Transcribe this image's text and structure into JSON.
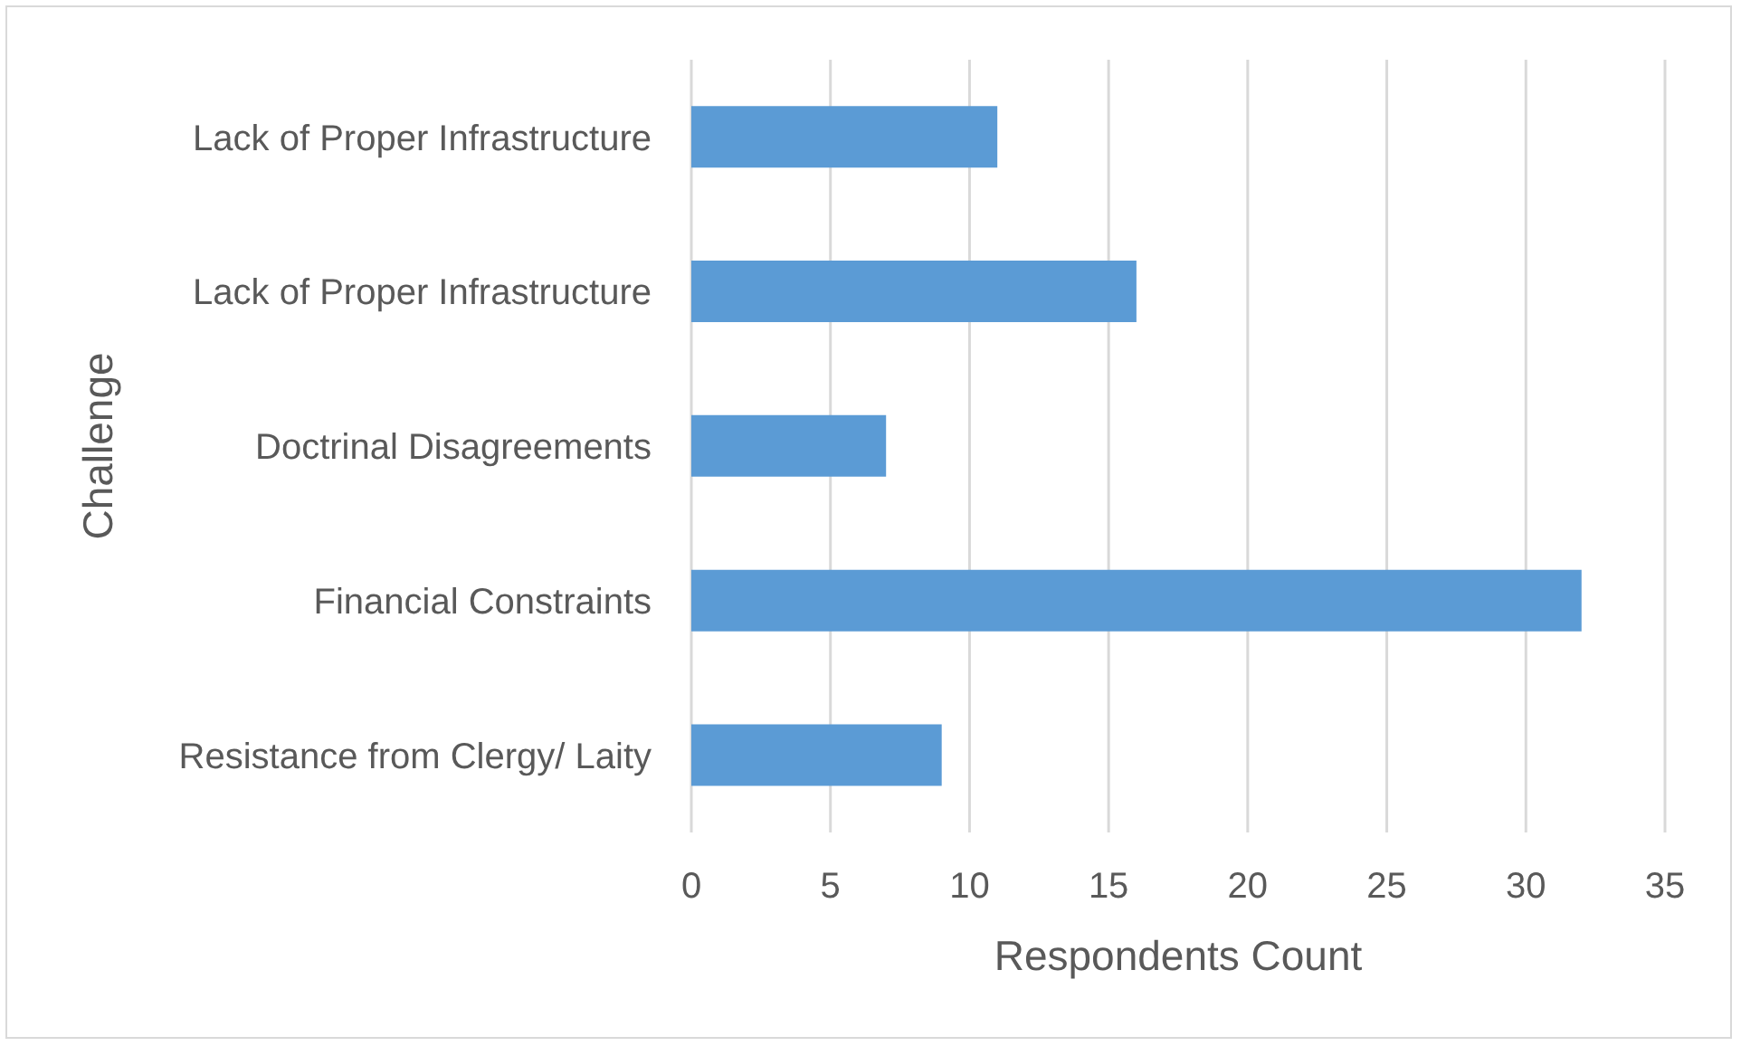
{
  "chart_data": {
    "type": "bar",
    "orientation": "horizontal",
    "categories": [
      "Lack of Proper Infrastructure",
      "Lack of Proper Infrastructure",
      "Doctrinal Disagreements",
      "Financial Constraints",
      "Resistance from Clergy/ Laity"
    ],
    "values": [
      11,
      16,
      7,
      32,
      9
    ],
    "color": "#5b9bd5",
    "xlabel": "Respondents Count",
    "ylabel": "Challenge",
    "xlim": [
      0,
      35
    ],
    "xticks": [
      0,
      5,
      10,
      15,
      20,
      25,
      30,
      35
    ],
    "grid": "x"
  }
}
